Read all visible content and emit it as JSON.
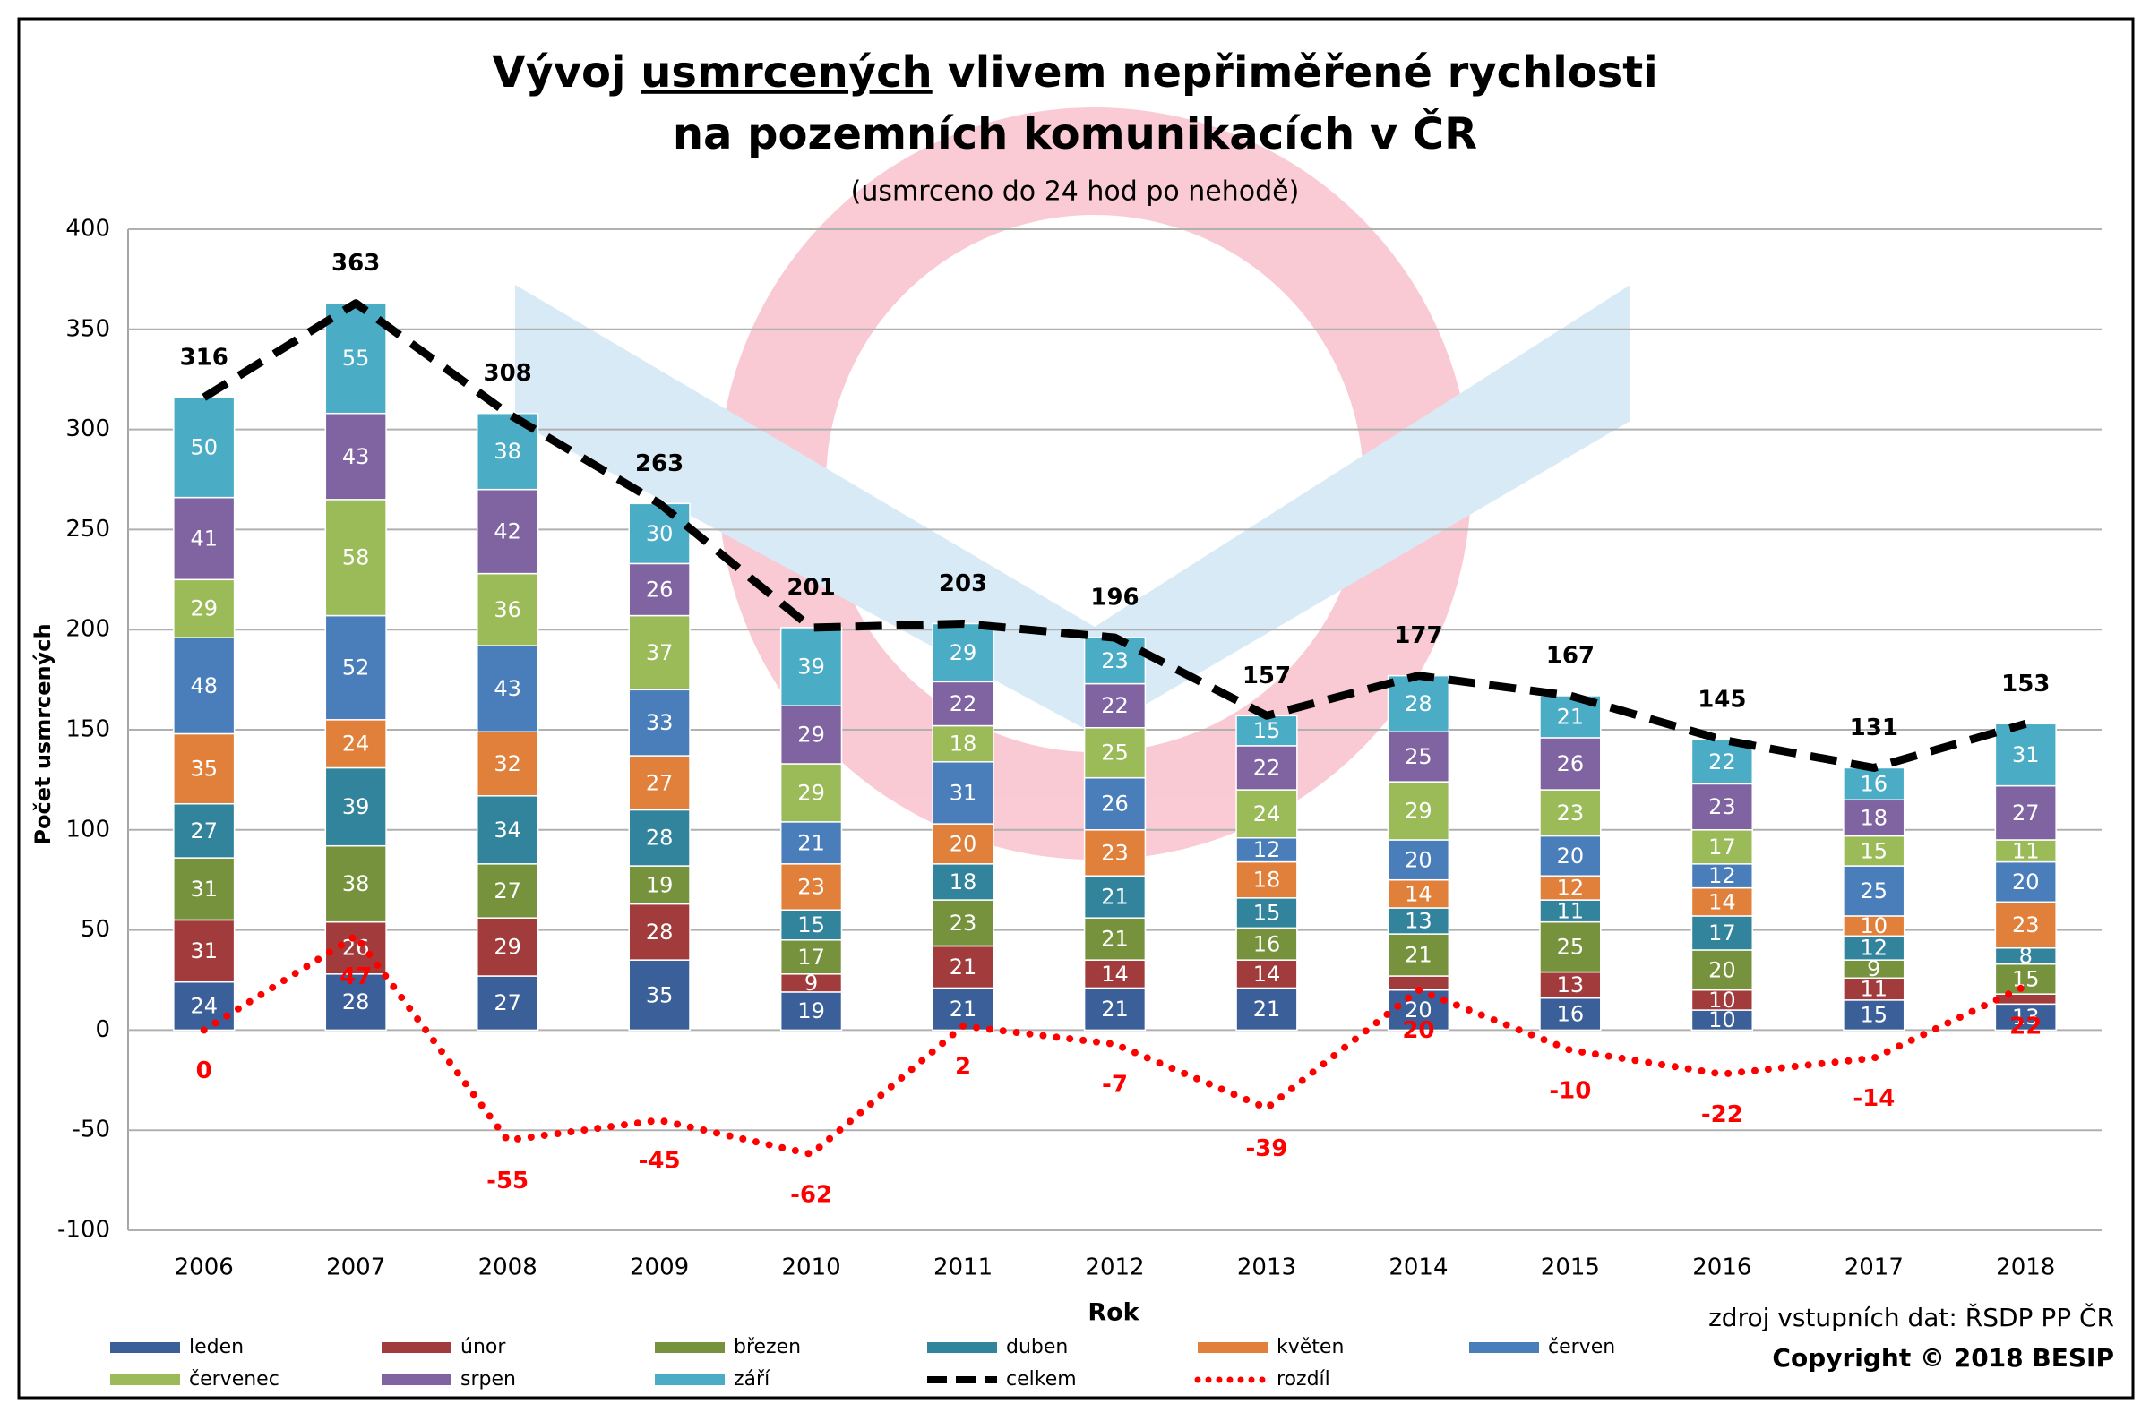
{
  "chart_data": {
    "type": "bar",
    "stacked": true,
    "title_parts": [
      "Vývoj",
      "usmrcených",
      "vlivem nepřiměřené rychlosti"
    ],
    "title_line2": "na pozemních komunikacích v ČR",
    "subtitle": "(usmrceno do 24 hod po nehodě)",
    "y_label": "Počet usmrcených",
    "x_label": "Rok",
    "source": "zdroj vstupních dat: ŘSDP PP ČR",
    "copyright": "Copyright © 2018 BESIP",
    "categories": [
      "2006",
      "2007",
      "2008",
      "2009",
      "2010",
      "2011",
      "2012",
      "2013",
      "2014",
      "2015",
      "2016",
      "2017",
      "2018"
    ],
    "series": [
      {
        "name": "leden",
        "color": "#3b5f98",
        "values": [
          24,
          28,
          27,
          35,
          19,
          21,
          21,
          21,
          20,
          16,
          10,
          15,
          13
        ]
      },
      {
        "name": "únor",
        "color": "#a23b3b",
        "values": [
          31,
          26,
          29,
          28,
          9,
          21,
          14,
          14,
          7,
          13,
          10,
          11,
          5
        ]
      },
      {
        "name": "březen",
        "color": "#76923c",
        "values": [
          31,
          38,
          27,
          19,
          17,
          23,
          21,
          16,
          21,
          25,
          20,
          9,
          15
        ]
      },
      {
        "name": "duben",
        "color": "#31849b",
        "values": [
          27,
          39,
          34,
          28,
          15,
          18,
          21,
          15,
          13,
          11,
          17,
          12,
          8
        ]
      },
      {
        "name": "květen",
        "color": "#e0803a",
        "values": [
          35,
          24,
          32,
          27,
          23,
          20,
          23,
          18,
          14,
          12,
          14,
          10,
          23
        ]
      },
      {
        "name": "červen",
        "color": "#4a7ebb",
        "values": [
          48,
          52,
          43,
          33,
          21,
          31,
          26,
          12,
          20,
          20,
          12,
          25,
          20
        ]
      },
      {
        "name": "červenec",
        "color": "#9bbb59",
        "values": [
          29,
          58,
          36,
          37,
          29,
          18,
          25,
          24,
          29,
          23,
          17,
          15,
          11
        ]
      },
      {
        "name": "srpen",
        "color": "#8064a2",
        "values": [
          41,
          43,
          42,
          26,
          29,
          22,
          22,
          22,
          25,
          26,
          23,
          18,
          27
        ]
      },
      {
        "name": "září",
        "color": "#4bacc6",
        "values": [
          50,
          55,
          38,
          30,
          39,
          29,
          23,
          15,
          28,
          21,
          22,
          16,
          31
        ]
      },
      {
        "name": "celkem",
        "type": "line",
        "line_style": "dashed",
        "color": "#000000",
        "values": [
          316,
          363,
          308,
          263,
          201,
          203,
          196,
          157,
          177,
          167,
          145,
          131,
          153
        ]
      },
      {
        "name": "rozdíl",
        "type": "line",
        "line_style": "dotted",
        "color": "#ff0000",
        "values": [
          0,
          47,
          -55,
          -45,
          -62,
          2,
          -7,
          -39,
          20,
          -10,
          -22,
          -14,
          22
        ]
      }
    ],
    "ylim": [
      -100,
      400
    ],
    "yticks": [
      -100,
      -50,
      0,
      50,
      100,
      150,
      200,
      250,
      300,
      350,
      400
    ],
    "grid": true
  }
}
